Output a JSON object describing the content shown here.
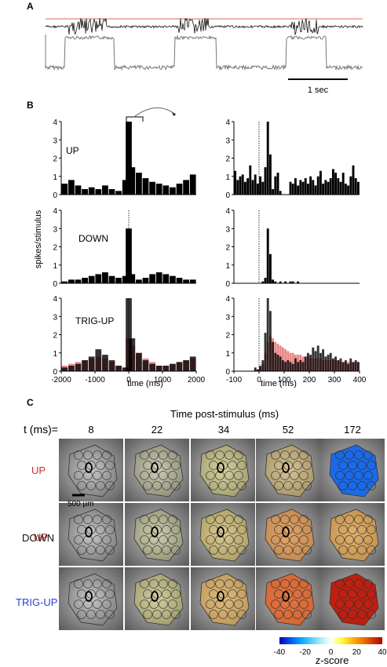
{
  "panels": {
    "a": {
      "label": "A",
      "scalebar_label": "1 sec"
    },
    "b": {
      "label": "B",
      "ylabel": "spikes/stimulus",
      "xlabel_left": "time (ms)",
      "xlabel_right": "time (ms)"
    },
    "c": {
      "label": "C",
      "title": "Time post-stimulus (ms)",
      "t_label": "t (ms)=",
      "scale_label": "500 µm",
      "colorbar_label": "z-score"
    }
  },
  "colors": {
    "up_label": "#d32f2f",
    "down_label": "#111111",
    "trig_up_label": "#2c3fd1",
    "overlay": "#e57373",
    "threshold_line": "#e06060"
  },
  "chart_data": [
    {
      "type": "bar",
      "name": "UP-long",
      "row_label": "UP",
      "xlim": [
        -2000,
        2000
      ],
      "ylim": [
        0,
        4
      ],
      "yticks": [
        0,
        1,
        2,
        3,
        4
      ],
      "xticks": [],
      "x": [
        -1900,
        -1700,
        -1500,
        -1300,
        -1100,
        -900,
        -700,
        -500,
        -300,
        -100,
        0,
        100,
        300,
        500,
        700,
        900,
        1100,
        1300,
        1500,
        1700,
        1900
      ],
      "values": [
        0.6,
        0.8,
        0.5,
        0.3,
        0.4,
        0.3,
        0.5,
        0.3,
        0.2,
        0.8,
        4.0,
        1.5,
        1.2,
        0.9,
        0.7,
        0.6,
        0.5,
        0.4,
        0.6,
        0.8,
        1.1
      ]
    },
    {
      "type": "bar",
      "name": "UP-short",
      "xlim": [
        -100,
        400
      ],
      "ylim": [
        0,
        4
      ],
      "yticks": [
        0,
        1,
        2,
        3,
        4
      ],
      "xticks": [],
      "x": [
        -95,
        -85,
        -75,
        -65,
        -55,
        -45,
        -35,
        -25,
        -15,
        -5,
        5,
        15,
        25,
        35,
        45,
        55,
        65,
        75,
        85,
        95,
        105,
        115,
        125,
        135,
        145,
        155,
        165,
        175,
        185,
        195,
        205,
        215,
        225,
        235,
        245,
        255,
        265,
        275,
        285,
        295,
        305,
        315,
        325,
        335,
        345,
        355,
        365,
        375,
        385,
        395
      ],
      "values": [
        1.3,
        0.8,
        1.0,
        1.1,
        0.7,
        0.9,
        1.6,
        0.8,
        1.1,
        0.6,
        1.0,
        0.7,
        1.5,
        4.0,
        2.2,
        0.3,
        1.0,
        1.2,
        0.2,
        0.0,
        0.0,
        0.0,
        0.7,
        0.6,
        0.9,
        0.5,
        0.8,
        0.7,
        0.9,
        0.6,
        1.0,
        0.8,
        0.5,
        1.0,
        1.3,
        0.6,
        0.8,
        0.7,
        0.9,
        1.4,
        1.2,
        0.9,
        0.7,
        1.2,
        0.6,
        0.5,
        1.0,
        1.6,
        0.9,
        0.7
      ]
    },
    {
      "type": "bar",
      "name": "DOWN-long",
      "row_label": "DOWN",
      "xlim": [
        -2000,
        2000
      ],
      "ylim": [
        0,
        4
      ],
      "yticks": [
        0,
        1,
        2,
        3,
        4
      ],
      "xticks": [],
      "x": [
        -1900,
        -1700,
        -1500,
        -1300,
        -1100,
        -900,
        -700,
        -500,
        -300,
        -100,
        0,
        100,
        300,
        500,
        700,
        900,
        1100,
        1300,
        1500,
        1700,
        1900
      ],
      "values": [
        0.1,
        0.2,
        0.2,
        0.3,
        0.4,
        0.5,
        0.6,
        0.4,
        0.3,
        0.4,
        3.0,
        0.5,
        0.2,
        0.3,
        0.5,
        0.6,
        0.5,
        0.4,
        0.3,
        0.2,
        0.2
      ]
    },
    {
      "type": "bar",
      "name": "DOWN-short",
      "xlim": [
        -100,
        400
      ],
      "ylim": [
        0,
        4
      ],
      "yticks": [
        0,
        1,
        2,
        3,
        4
      ],
      "xticks": [],
      "x": [
        -95,
        -85,
        -75,
        -65,
        -55,
        -45,
        -35,
        -25,
        -15,
        -5,
        5,
        15,
        25,
        35,
        45,
        55,
        65,
        75,
        85,
        95,
        105,
        115,
        125,
        135,
        145,
        155,
        165,
        175,
        185,
        195,
        205,
        215,
        225,
        235,
        245,
        255,
        265,
        275,
        285,
        295,
        305,
        315,
        325,
        335,
        345,
        355,
        365,
        375,
        385,
        395
      ],
      "values": [
        0,
        0,
        0,
        0,
        0,
        0,
        0,
        0,
        0,
        0,
        0,
        0.1,
        0.3,
        3.0,
        1.6,
        0.2,
        0.1,
        0,
        0.1,
        0,
        0.1,
        0,
        0.1,
        0.1,
        0,
        0.1,
        0,
        0,
        0,
        0,
        0,
        0,
        0,
        0,
        0,
        0,
        0,
        0,
        0,
        0,
        0,
        0,
        0,
        0,
        0,
        0,
        0,
        0,
        0,
        0
      ]
    },
    {
      "type": "bar",
      "name": "TRIG-UP-long",
      "row_label": "TRIG-UP",
      "xlim": [
        -2000,
        2000
      ],
      "ylim": [
        0,
        4
      ],
      "yticks": [
        0,
        1,
        2,
        3,
        4
      ],
      "xticks": [
        -2000,
        -1000,
        0,
        1000,
        2000
      ],
      "xticklabels": [
        "-2000",
        "-1000",
        "0",
        "1000",
        "2000"
      ],
      "x": [
        -1900,
        -1700,
        -1500,
        -1300,
        -1100,
        -900,
        -700,
        -500,
        -300,
        -100,
        0,
        100,
        300,
        500,
        700,
        900,
        1100,
        1300,
        1500,
        1700,
        1900
      ],
      "values": [
        0.2,
        0.3,
        0.4,
        0.6,
        0.8,
        1.2,
        0.9,
        0.6,
        0.3,
        0.2,
        4.0,
        1.8,
        1.0,
        0.6,
        0.4,
        0.3,
        0.3,
        0.4,
        0.5,
        0.6,
        0.8
      ],
      "overlay_values": [
        0.3,
        0.4,
        0.5,
        0.6,
        0.7,
        0.8,
        0.7,
        0.5,
        0.3,
        0.2,
        1.8,
        1.4,
        1.0,
        0.7,
        0.5,
        0.3,
        0.3,
        0.4,
        0.5,
        0.6,
        0.7
      ]
    },
    {
      "type": "bar",
      "name": "TRIG-UP-short",
      "xlim": [
        -100,
        400
      ],
      "ylim": [
        0,
        4
      ],
      "yticks": [
        0,
        1,
        2,
        3,
        4
      ],
      "xticks": [
        -100,
        0,
        100,
        200,
        300,
        400
      ],
      "xticklabels": [
        "-100",
        "0",
        "100",
        "200",
        "300",
        "400"
      ],
      "x": [
        -95,
        -85,
        -75,
        -65,
        -55,
        -45,
        -35,
        -25,
        -15,
        -5,
        5,
        15,
        25,
        35,
        45,
        55,
        65,
        75,
        85,
        95,
        105,
        115,
        125,
        135,
        145,
        155,
        165,
        175,
        185,
        195,
        205,
        215,
        225,
        235,
        245,
        255,
        265,
        275,
        285,
        295,
        305,
        315,
        325,
        335,
        345,
        355,
        365,
        375,
        385,
        395
      ],
      "values": [
        0,
        0,
        0,
        0,
        0,
        0,
        0,
        0,
        0.2,
        0.1,
        0.3,
        0.6,
        2.1,
        4.0,
        3.3,
        1.6,
        1.0,
        0.9,
        0.8,
        0.6,
        0.5,
        0.6,
        0.5,
        0.4,
        0.7,
        0.5,
        0.6,
        0.5,
        0.8,
        1.0,
        0.9,
        1.3,
        1.1,
        1.4,
        1.0,
        1.2,
        0.8,
        0.9,
        1.0,
        0.7,
        0.8,
        0.6,
        0.7,
        0.5,
        0.6,
        0.4,
        0.7,
        0.5,
        0.6,
        0.5
      ],
      "overlay_values": [
        0,
        0,
        0,
        0,
        0,
        0,
        0,
        0,
        0.1,
        0.1,
        0.2,
        0.4,
        1.0,
        1.6,
        1.9,
        1.8,
        1.6,
        1.5,
        1.4,
        1.3,
        1.2,
        1.1,
        1.0,
        1.0,
        0.9,
        0.9,
        0.9,
        0.8,
        0.8,
        0.8,
        0.7,
        0.7,
        0.7,
        0.7,
        0.7,
        0.6,
        0.6,
        0.6,
        0.6,
        0.6,
        0.6,
        0.6,
        0.5,
        0.5,
        0.5,
        0.5,
        0.5,
        0.5,
        0.5,
        0.5
      ]
    },
    {
      "type": "heatmap",
      "name": "imaging-grid",
      "columns": [
        "8",
        "22",
        "34",
        "52",
        "172"
      ],
      "rows": [
        "UP",
        "DOWN",
        "TRIG-UP"
      ],
      "colorbar": {
        "min": -40,
        "max": 40,
        "ticks": [
          -40,
          -20,
          0,
          20,
          40
        ],
        "ticklabels": [
          "-40",
          "-20",
          "0",
          "20",
          "40"
        ]
      }
    }
  ]
}
